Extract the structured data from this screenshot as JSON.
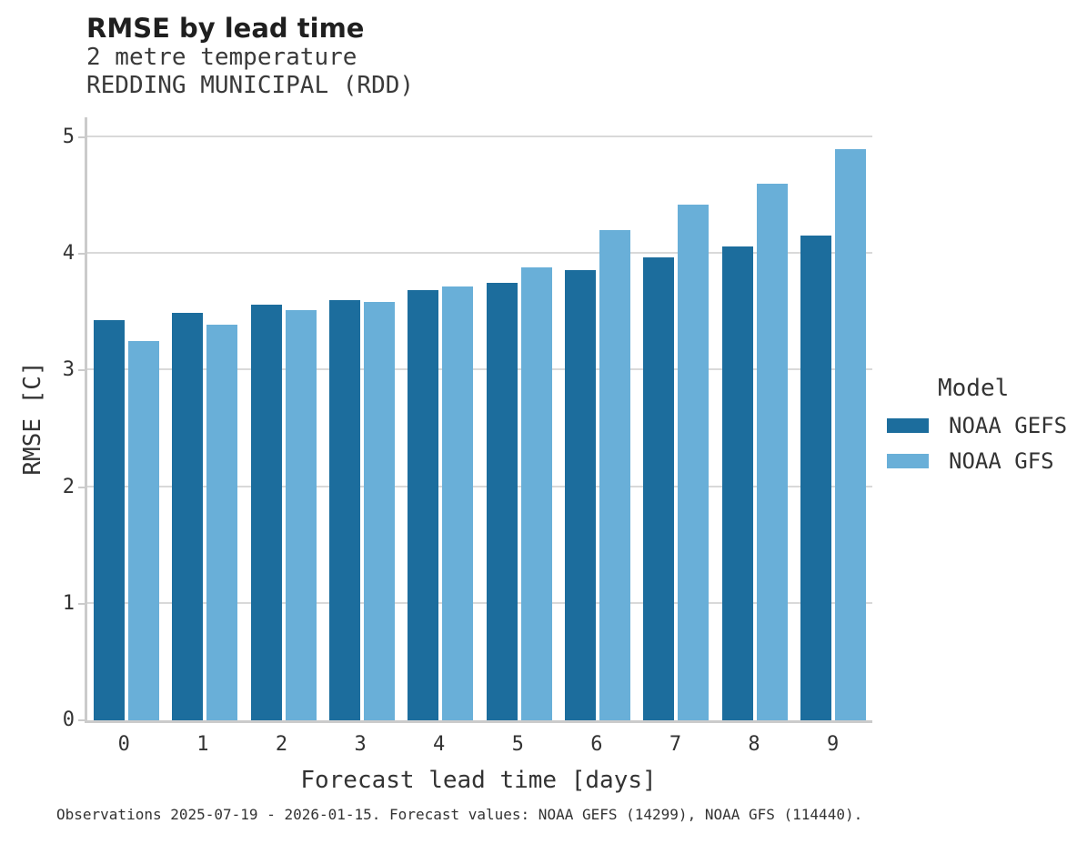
{
  "header": {
    "title": "RMSE by lead time",
    "subtitle1": "2 metre temperature",
    "subtitle2": "REDDING MUNICIPAL (RDD)"
  },
  "caption": "Observations 2025-07-19 - 2026-01-15. Forecast values: NOAA GEFS (14299), NOAA GFS (114440).",
  "colors": {
    "gefs_bar": "#1c6d9d",
    "gfs_bar": "#69afd8",
    "gridline": "#d9d9d9",
    "spine": "#cbcbcb",
    "text": "#333333"
  },
  "chart_data": {
    "type": "bar",
    "title": "RMSE by lead time",
    "subtitle": [
      "2 metre temperature",
      "REDDING MUNICIPAL (RDD)"
    ],
    "xlabel": "Forecast lead time [days]",
    "ylabel": "RMSE [C]",
    "categories": [
      "0",
      "1",
      "2",
      "3",
      "4",
      "5",
      "6",
      "7",
      "8",
      "9"
    ],
    "series": [
      {
        "name": "NOAA GEFS",
        "color": "#1c6d9d",
        "values": [
          3.43,
          3.49,
          3.56,
          3.6,
          3.69,
          3.75,
          3.86,
          3.97,
          4.06,
          4.16
        ]
      },
      {
        "name": "NOAA GFS",
        "color": "#69afd8",
        "values": [
          3.25,
          3.39,
          3.52,
          3.59,
          3.72,
          3.88,
          4.2,
          4.42,
          4.6,
          4.9
        ]
      }
    ],
    "ylim": [
      0,
      5.17
    ],
    "yticks": [
      0,
      1,
      2,
      3,
      4,
      5
    ],
    "grid": "horizontal",
    "legend_title": "Model",
    "legend_position": "right",
    "caption": "Observations 2025-07-19 - 2026-01-15. Forecast values: NOAA GEFS (14299), NOAA GFS (114440)."
  }
}
